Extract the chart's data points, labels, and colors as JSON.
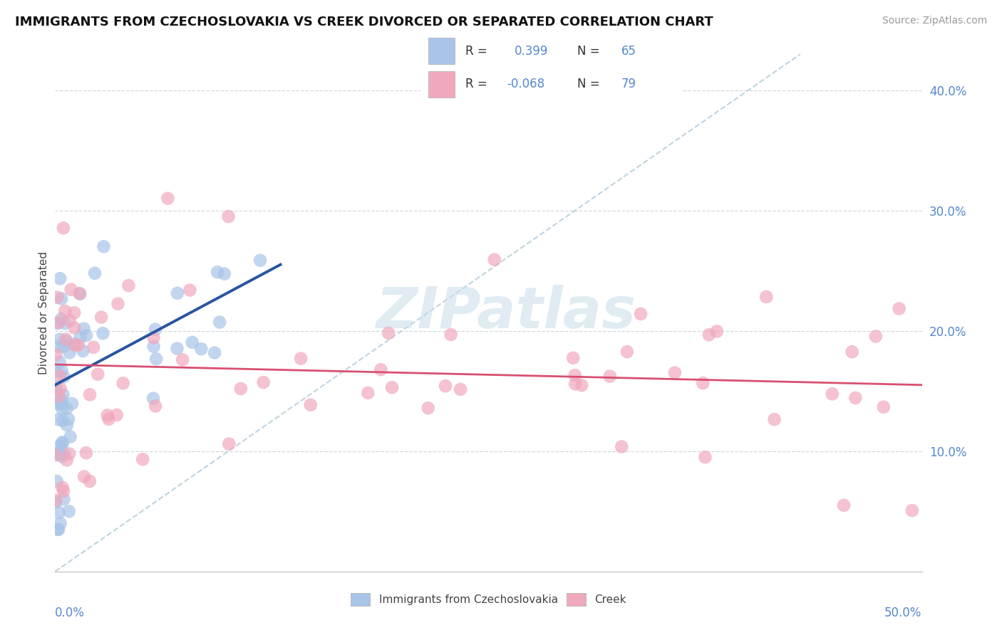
{
  "title": "IMMIGRANTS FROM CZECHOSLOVAKIA VS CREEK DIVORCED OR SEPARATED CORRELATION CHART",
  "source": "Source: ZipAtlas.com",
  "ylabel": "Divorced or Separated",
  "blue_color": "#a8c4e8",
  "pink_color": "#f0a8bc",
  "blue_line_color": "#2855a0",
  "pink_line_color": "#d85070",
  "dashed_line_color": "#b0c8d8",
  "watermark_color": "#c8dce8",
  "tick_color": "#5588cc",
  "grid_color": "#d0d8e0",
  "xlim": [
    0.0,
    0.5
  ],
  "ylim": [
    0.0,
    0.43
  ],
  "xtick_vals": [
    0.0,
    0.1,
    0.2,
    0.3,
    0.4,
    0.5
  ],
  "ytick_vals": [
    0.0,
    0.1,
    0.2,
    0.3,
    0.4
  ],
  "blue_line_x": [
    0.0,
    0.13
  ],
  "blue_line_y": [
    0.155,
    0.255
  ],
  "pink_line_x": [
    0.0,
    0.5
  ],
  "pink_line_y": [
    0.172,
    0.155
  ],
  "diag_line_x": [
    0.0,
    0.43
  ],
  "diag_line_y": [
    0.0,
    0.43
  ]
}
